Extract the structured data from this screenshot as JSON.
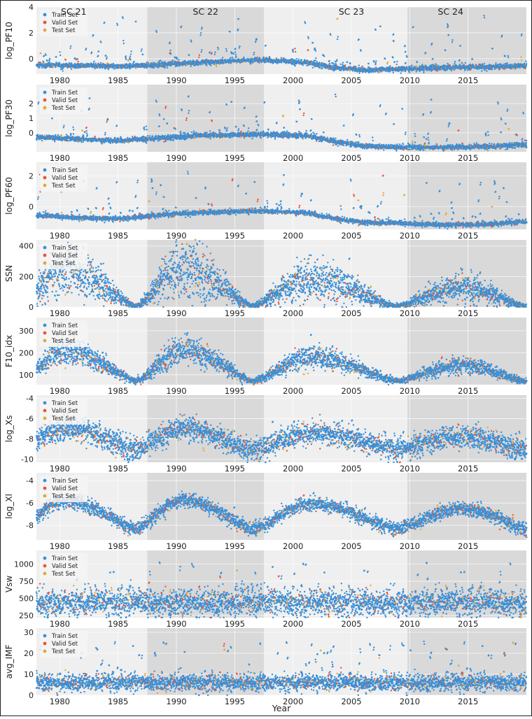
{
  "chart_data": {
    "type": "scatter",
    "xlabel": "Year",
    "xlim": [
      1978,
      2020
    ],
    "xticks": [
      1980,
      1985,
      1990,
      1995,
      2000,
      2005,
      2010,
      2015
    ],
    "cycles": [
      {
        "label": "SC 21",
        "start": 1978,
        "end": 1987.5,
        "shaded": false,
        "label_x": 1981.2
      },
      {
        "label": "SC 22",
        "start": 1987.5,
        "end": 1997.5,
        "shaded": true,
        "label_x": 1992.5
      },
      {
        "label": "SC 23",
        "start": 1997.5,
        "end": 2009.8,
        "shaded": false,
        "label_x": 2005.0
      },
      {
        "label": "SC 24",
        "start": 2009.8,
        "end": 2020,
        "shaded": true,
        "label_x": 2013.5
      }
    ],
    "legend": {
      "position": "upper-left",
      "entries": [
        "Train Set",
        "Valid Set",
        "Test Set"
      ]
    },
    "series_colors": {
      "Train Set": "#3a8fd6",
      "Valid Set": "#e8553a",
      "Test Set": "#e0a93a"
    },
    "panels": [
      {
        "ylabel": "log_PF10",
        "ylim": [
          -1.2,
          4.0
        ],
        "yticks": [
          0,
          2,
          4
        ],
        "baseline": [
          [
            1978,
            -0.5
          ],
          [
            1982,
            -0.55
          ],
          [
            1985,
            -0.6
          ],
          [
            1988,
            -0.5
          ],
          [
            1992,
            -0.3
          ],
          [
            1997,
            -0.1
          ],
          [
            2001,
            -0.3
          ],
          [
            2003.5,
            -0.7
          ],
          [
            2006,
            -0.9
          ],
          [
            2009,
            -0.8
          ],
          [
            2013,
            -0.7
          ],
          [
            2017,
            -0.65
          ],
          [
            2020,
            -0.55
          ]
        ],
        "noise": 0.08,
        "spike_max": 3.8,
        "spike_rate": 0.05
      },
      {
        "ylabel": "log_PF30",
        "ylim": [
          -1.3,
          3.3
        ],
        "yticks": [
          0,
          1,
          2
        ],
        "baseline": [
          [
            1978,
            -0.3
          ],
          [
            1982,
            -0.45
          ],
          [
            1985,
            -0.55
          ],
          [
            1988,
            -0.4
          ],
          [
            1992,
            -0.2
          ],
          [
            1997,
            -0.1
          ],
          [
            2001,
            -0.2
          ],
          [
            2003.5,
            -0.6
          ],
          [
            2006,
            -0.9
          ],
          [
            2009,
            -1.0
          ],
          [
            2013,
            -1.0
          ],
          [
            2017,
            -0.95
          ],
          [
            2020,
            -0.8
          ]
        ],
        "noise": 0.07,
        "spike_max": 3.0,
        "spike_rate": 0.045
      },
      {
        "ylabel": "log_PF60",
        "ylim": [
          -1.5,
          2.9
        ],
        "yticks": [
          0,
          2
        ],
        "baseline": [
          [
            1978,
            -0.6
          ],
          [
            1982,
            -0.75
          ],
          [
            1985,
            -0.8
          ],
          [
            1988,
            -0.6
          ],
          [
            1992,
            -0.4
          ],
          [
            1997,
            -0.3
          ],
          [
            2001,
            -0.4
          ],
          [
            2003.5,
            -0.8
          ],
          [
            2006,
            -1.05
          ],
          [
            2009,
            -1.1
          ],
          [
            2013,
            -1.2
          ],
          [
            2017,
            -1.15
          ],
          [
            2020,
            -1.0
          ]
        ],
        "noise": 0.06,
        "spike_max": 2.6,
        "spike_rate": 0.04
      },
      {
        "ylabel": "SSN",
        "ylim": [
          0,
          440
        ],
        "yticks": [
          0,
          200,
          400
        ],
        "cycle_model": [
          {
            "min": 1976.5,
            "peak": 1980.5,
            "end": 1986.5,
            "amp": 230
          },
          {
            "min": 1986.5,
            "peak": 1990.6,
            "end": 1996.5,
            "amp": 240
          },
          {
            "min": 1996.5,
            "peak": 2001.5,
            "end": 2008.8,
            "amp": 180
          },
          {
            "min": 2008.8,
            "peak": 2014.5,
            "end": 2019.8,
            "amp": 115
          }
        ],
        "base": 8,
        "noise_frac": 0.35
      },
      {
        "ylabel": "F10_idx",
        "ylim": [
          55,
          360
        ],
        "yticks": [
          100,
          200,
          300
        ],
        "cycle_model": [
          {
            "min": 1976.5,
            "peak": 1980.5,
            "end": 1986.5,
            "amp": 135
          },
          {
            "min": 1986.5,
            "peak": 1990.6,
            "end": 1996.5,
            "amp": 140
          },
          {
            "min": 1996.5,
            "peak": 2001.5,
            "end": 2008.8,
            "amp": 110
          },
          {
            "min": 2008.8,
            "peak": 2014.5,
            "end": 2019.8,
            "amp": 70
          }
        ],
        "base": 72,
        "noise_frac": 0.18
      },
      {
        "ylabel": "log_Xs",
        "ylim": [
          -10.3,
          -3.7
        ],
        "yticks": [
          -4,
          -6,
          -8,
          -10
        ],
        "cycle_model": [
          {
            "min": 1976.5,
            "peak": 1980.5,
            "end": 1986.5,
            "amp": 2.0
          },
          {
            "min": 1986.5,
            "peak": 1990.6,
            "end": 1996.5,
            "amp": 2.0
          },
          {
            "min": 1996.5,
            "peak": 2001.5,
            "end": 2008.8,
            "amp": 1.6
          },
          {
            "min": 2008.8,
            "peak": 2014.5,
            "end": 2019.8,
            "amp": 1.2
          }
        ],
        "base": -9.0,
        "noise_abs": 0.55
      },
      {
        "ylabel": "log_Xl",
        "ylim": [
          -9.3,
          -3.3
        ],
        "yticks": [
          -4,
          -6,
          -8
        ],
        "cycle_model": [
          {
            "min": 1976.5,
            "peak": 1980.5,
            "end": 1986.5,
            "amp": 2.5
          },
          {
            "min": 1986.5,
            "peak": 1990.6,
            "end": 1996.5,
            "amp": 2.6
          },
          {
            "min": 1996.5,
            "peak": 2001.5,
            "end": 2008.8,
            "amp": 2.2
          },
          {
            "min": 2008.8,
            "peak": 2014.5,
            "end": 2019.8,
            "amp": 1.8
          }
        ],
        "base": -8.3,
        "noise_abs": 0.3
      },
      {
        "ylabel": "Vsw",
        "ylim": [
          220,
          1200
        ],
        "yticks": [
          250,
          500,
          750,
          1000
        ],
        "flat": {
          "mean": 440,
          "spread": 110,
          "spike_max": 1150,
          "spike_rate": 0.02
        }
      },
      {
        "ylabel": "avg_IMF",
        "ylim": [
          0,
          32
        ],
        "yticks": [
          0,
          10,
          20,
          30
        ],
        "flat": {
          "mean": 6,
          "spread": 2.2,
          "spike_max": 30,
          "spike_rate": 0.03
        }
      }
    ]
  }
}
